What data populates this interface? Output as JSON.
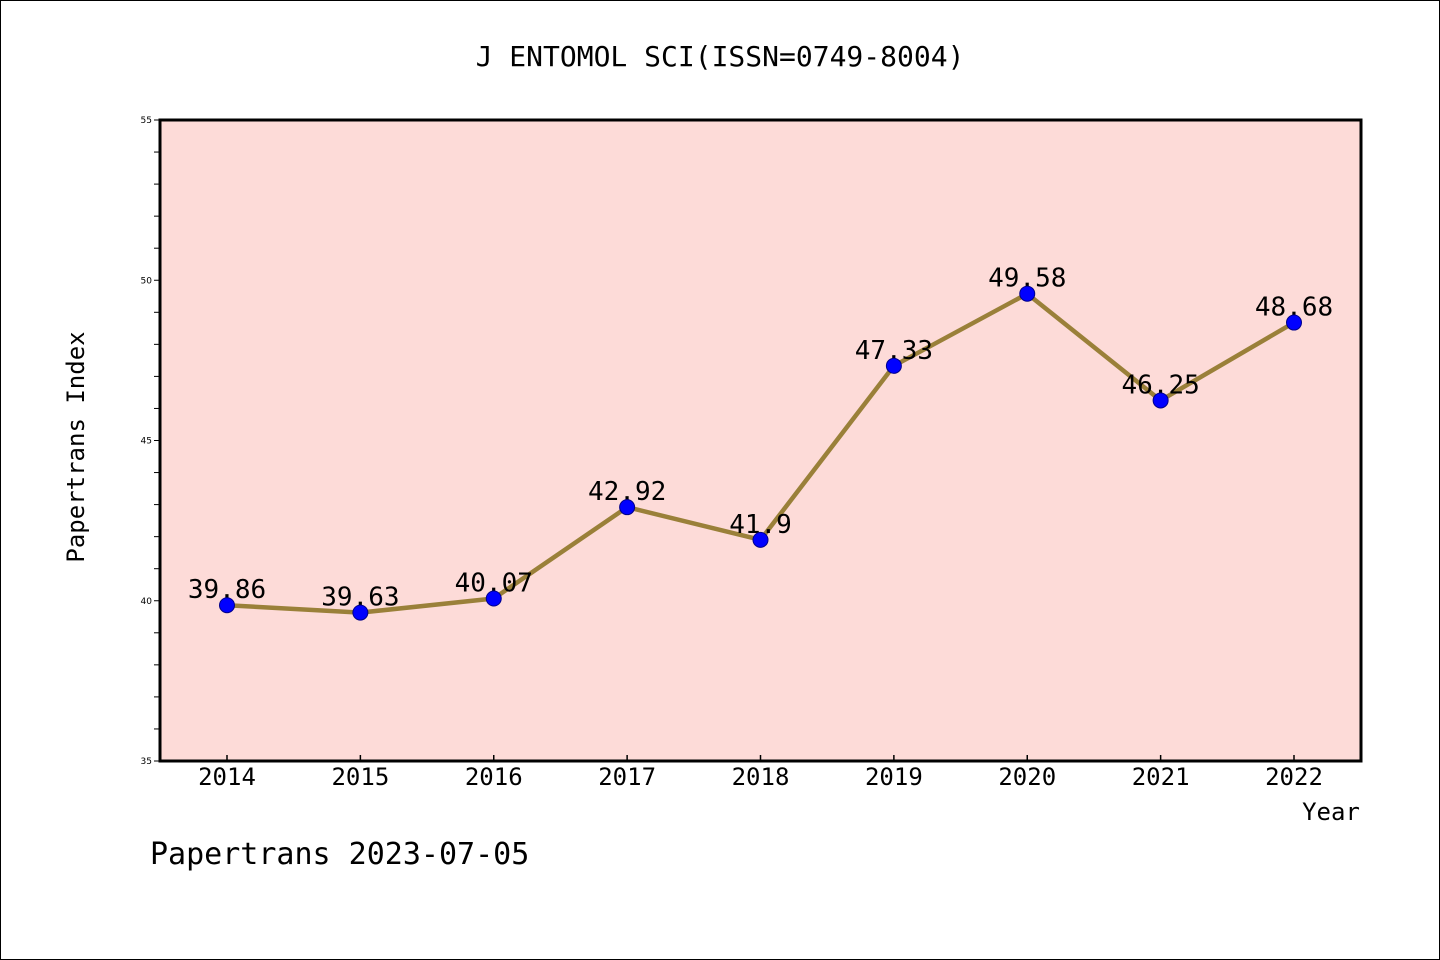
{
  "chart_data": {
    "type": "line",
    "title": "J ENTOMOL SCI(ISSN=0749-8004)",
    "xlabel": "Year",
    "ylabel": "Papertrans Index",
    "categories": [
      "2014",
      "2015",
      "2016",
      "2017",
      "2018",
      "2019",
      "2020",
      "2021",
      "2022"
    ],
    "series": [
      {
        "values": [
          39.86,
          39.63,
          40.07,
          42.92,
          41.9,
          47.33,
          49.58,
          46.25,
          48.68
        ],
        "labels": [
          "39.86",
          "39.63",
          "40.07",
          "42.92",
          "41.9",
          "47.33",
          "49.58",
          "46.25",
          "48.68"
        ]
      }
    ],
    "ylim": [
      35,
      55
    ],
    "yticks": [
      "35",
      "40",
      "45",
      "50",
      "55"
    ],
    "grid": false,
    "colors": {
      "plot_background": "#fddbd8",
      "line": "#9a8039",
      "marker": "#0000ff"
    }
  },
  "footer": "Papertrans 2023-07-05"
}
